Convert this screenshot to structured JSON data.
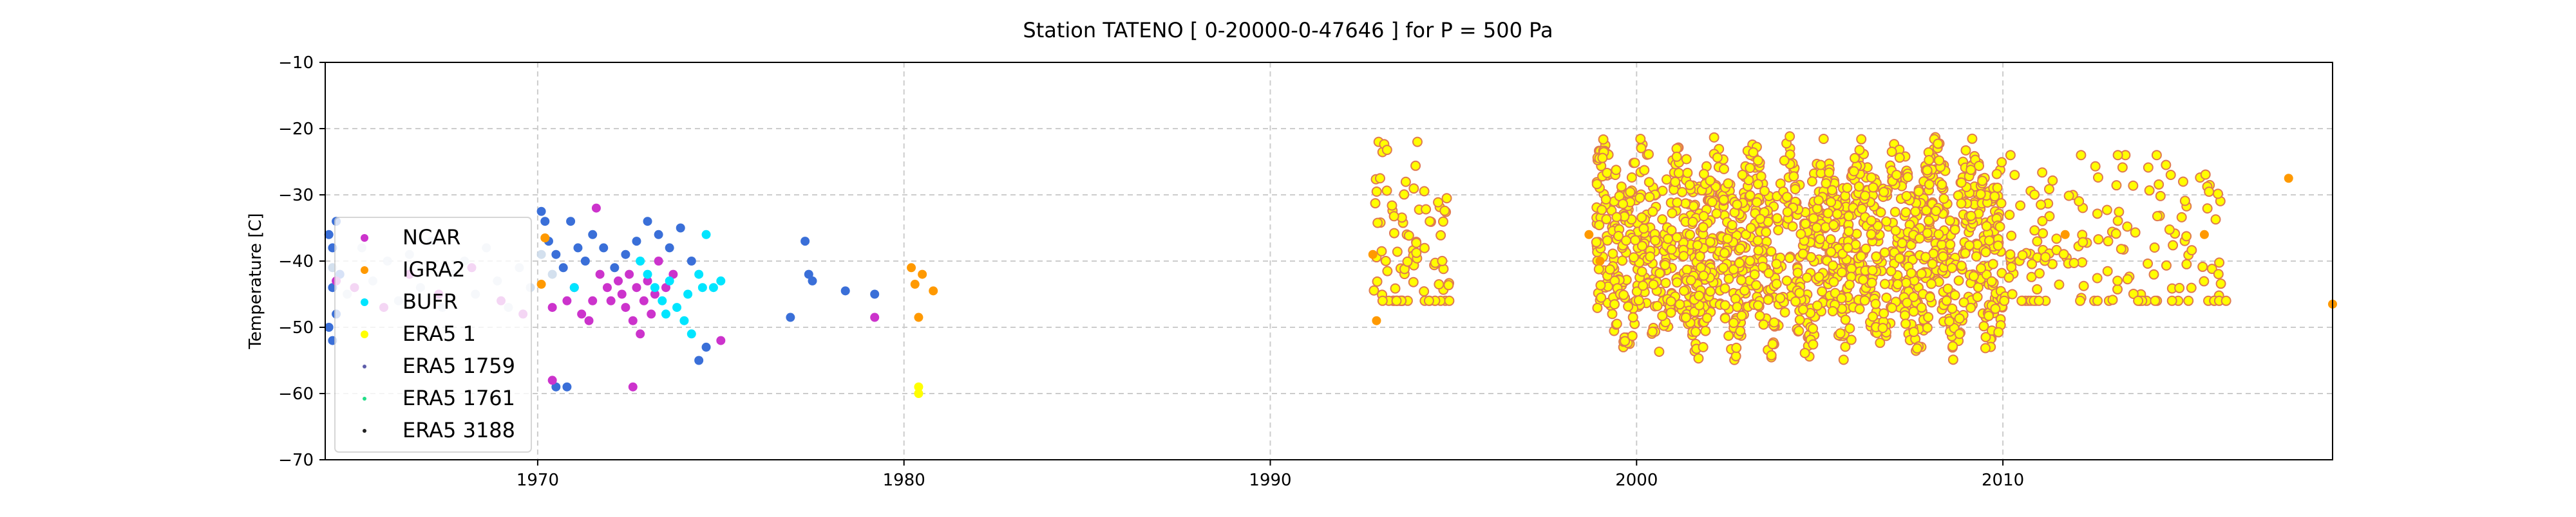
{
  "chart_data": {
    "type": "scatter",
    "title": "Station  TATENO [ 0-20000-0-47646 ]  for P = 500 Pa",
    "xlabel": "",
    "ylabel": "Temperature [C]",
    "xlim": [
      1964.2,
      2019.0
    ],
    "ylim": [
      -70,
      -10
    ],
    "x_ticks": [
      1970,
      1980,
      1990,
      2000,
      2010
    ],
    "y_ticks": [
      -10,
      -20,
      -30,
      -40,
      -50,
      -60,
      -70
    ],
    "grid": true,
    "legend_position": "center-left",
    "series": [
      {
        "name": "NCAR",
        "color": "#cc33cc",
        "values": [
          [
            1964.5,
            -43
          ],
          [
            1965.0,
            -44
          ],
          [
            1965.8,
            -47
          ],
          [
            1966.5,
            -42
          ],
          [
            1967.3,
            -45
          ],
          [
            1968.2,
            -41
          ],
          [
            1969.0,
            -46
          ],
          [
            1969.6,
            -48
          ],
          [
            1970.4,
            -47
          ],
          [
            1970.8,
            -46
          ],
          [
            1971.0,
            -44
          ],
          [
            1971.2,
            -48
          ],
          [
            1971.4,
            -49
          ],
          [
            1971.5,
            -46
          ],
          [
            1971.6,
            -32
          ],
          [
            1971.7,
            -42
          ],
          [
            1971.9,
            -44
          ],
          [
            1972.0,
            -46
          ],
          [
            1972.2,
            -43
          ],
          [
            1972.3,
            -45
          ],
          [
            1972.4,
            -47
          ],
          [
            1972.5,
            -42
          ],
          [
            1972.6,
            -49
          ],
          [
            1972.7,
            -44
          ],
          [
            1972.8,
            -51
          ],
          [
            1972.9,
            -46
          ],
          [
            1973.0,
            -43
          ],
          [
            1973.1,
            -48
          ],
          [
            1973.2,
            -45
          ],
          [
            1973.3,
            -40
          ],
          [
            1973.5,
            -44
          ],
          [
            1973.7,
            -42
          ],
          [
            1972.6,
            -59
          ],
          [
            1970.4,
            -58
          ],
          [
            1975.0,
            -52
          ],
          [
            1979.2,
            -48.5
          ]
        ]
      },
      {
        "name": "IGRA2",
        "color": "#ff9900",
        "values": [
          [
            1970.2,
            -36.5
          ],
          [
            1970.1,
            -43.5
          ],
          [
            1980.2,
            -41
          ],
          [
            1980.5,
            -42
          ],
          [
            1980.3,
            -43.5
          ],
          [
            1980.8,
            -44.5
          ],
          [
            1980.4,
            -48.5
          ],
          [
            1992.8,
            -39
          ],
          [
            1992.9,
            -49
          ],
          [
            1998.7,
            -36
          ],
          [
            1999.0,
            -40
          ],
          [
            2011.7,
            -36
          ],
          [
            2015.5,
            -36
          ],
          [
            2017.8,
            -27.5
          ],
          [
            2019.0,
            -46.5
          ]
        ]
      },
      {
        "name": "BUFR",
        "color": "#00e5ff",
        "values": [
          [
            1971.0,
            -44
          ],
          [
            1972.8,
            -40
          ],
          [
            1973.0,
            -42
          ],
          [
            1973.2,
            -44
          ],
          [
            1973.4,
            -46
          ],
          [
            1973.5,
            -48
          ],
          [
            1973.6,
            -43
          ],
          [
            1973.8,
            -47
          ],
          [
            1974.0,
            -49
          ],
          [
            1974.1,
            -45
          ],
          [
            1974.2,
            -51
          ],
          [
            1974.4,
            -42
          ],
          [
            1974.5,
            -44
          ],
          [
            1974.6,
            -36
          ],
          [
            1974.8,
            -44
          ],
          [
            1975.0,
            -43
          ]
        ]
      },
      {
        "name": "ERA5 1",
        "color": "#ffff00",
        "values": [
          [
            1980.4,
            -59
          ],
          [
            1980.4,
            -60
          ]
        ]
      },
      {
        "name": "ERA5 1759",
        "color": "#5e5eaa",
        "values": []
      },
      {
        "name": "ERA5 1761",
        "color": "#22dd88",
        "values": []
      },
      {
        "name": "ERA5 3188",
        "color": "#222222",
        "values": []
      }
    ],
    "background_series": {
      "color": "#c8d8ea",
      "values": [
        [
          1964.4,
          -41
        ],
        [
          1964.8,
          -45
        ],
        [
          1965.2,
          -38
        ],
        [
          1965.5,
          -43
        ],
        [
          1965.9,
          -40
        ],
        [
          1966.2,
          -46
        ],
        [
          1966.5,
          -39
        ],
        [
          1966.8,
          -44
        ],
        [
          1967.1,
          -37
        ],
        [
          1967.4,
          -47
        ],
        [
          1967.7,
          -42
        ],
        [
          1968.0,
          -40
        ],
        [
          1968.3,
          -45
        ],
        [
          1968.6,
          -38
        ],
        [
          1968.9,
          -43
        ],
        [
          1969.2,
          -47
        ],
        [
          1969.5,
          -41
        ],
        [
          1969.8,
          -44
        ],
        [
          1970.1,
          -39
        ],
        [
          1970.4,
          -42
        ]
      ]
    },
    "blue_series": {
      "color": "#3a6fd8",
      "values": [
        [
          1964.3,
          -36
        ],
        [
          1964.4,
          -38
        ],
        [
          1964.4,
          -44
        ],
        [
          1964.5,
          -34
        ],
        [
          1964.5,
          -48
        ],
        [
          1964.3,
          -50
        ],
        [
          1964.4,
          -52
        ],
        [
          1964.6,
          -42
        ],
        [
          1970.1,
          -32.5
        ],
        [
          1970.2,
          -34
        ],
        [
          1970.3,
          -37
        ],
        [
          1970.5,
          -39
        ],
        [
          1970.7,
          -41
        ],
        [
          1970.9,
          -34
        ],
        [
          1971.1,
          -38
        ],
        [
          1971.3,
          -40
        ],
        [
          1971.5,
          -36
        ],
        [
          1971.8,
          -38
        ],
        [
          1972.1,
          -41
        ],
        [
          1972.4,
          -39
        ],
        [
          1972.7,
          -37
        ],
        [
          1973.0,
          -34
        ],
        [
          1973.3,
          -36
        ],
        [
          1973.6,
          -38
        ],
        [
          1973.9,
          -35
        ],
        [
          1974.2,
          -40
        ],
        [
          1974.4,
          -55
        ],
        [
          1974.6,
          -53
        ],
        [
          1970.5,
          -59
        ],
        [
          1970.8,
          -59
        ],
        [
          1976.9,
          -48.5
        ],
        [
          1977.3,
          -37
        ],
        [
          1977.4,
          -42
        ],
        [
          1977.5,
          -43
        ],
        [
          1978.4,
          -44.5
        ],
        [
          1979.2,
          -45
        ]
      ]
    }
  }
}
